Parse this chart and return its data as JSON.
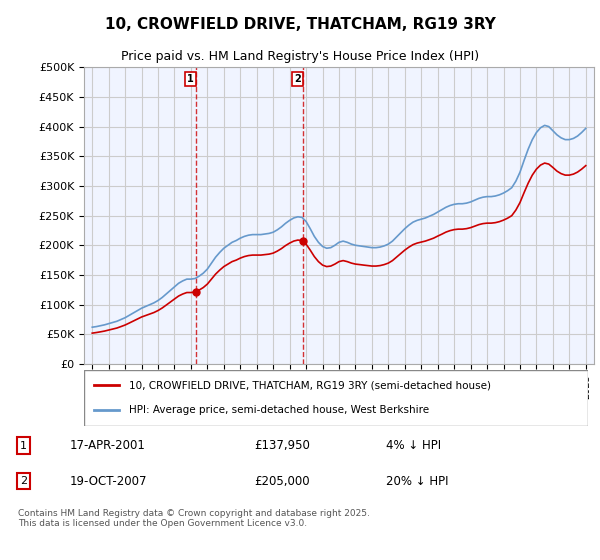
{
  "title": "10, CROWFIELD DRIVE, THATCHAM, RG19 3RY",
  "subtitle": "Price paid vs. HM Land Registry's House Price Index (HPI)",
  "ylabel_ticks": [
    "£0",
    "£50K",
    "£100K",
    "£150K",
    "£200K",
    "£250K",
    "£300K",
    "£350K",
    "£400K",
    "£450K",
    "£500K"
  ],
  "ytick_values": [
    0,
    50000,
    100000,
    150000,
    200000,
    250000,
    300000,
    350000,
    400000,
    450000,
    500000
  ],
  "xlim_years": [
    1994.5,
    2025.5
  ],
  "ylim": [
    0,
    500000
  ],
  "vline1_x": 2001.29,
  "vline2_x": 2007.79,
  "sale1_label": "1",
  "sale2_label": "2",
  "sale1_price": 137950,
  "sale2_price": 205000,
  "sale1_date": "17-APR-2001",
  "sale2_date": "19-OCT-2007",
  "sale1_hpi_diff": "4% ↓ HPI",
  "sale2_hpi_diff": "20% ↓ HPI",
  "legend_line1": "10, CROWFIELD DRIVE, THATCHAM, RG19 3RY (semi-detached house)",
  "legend_line2": "HPI: Average price, semi-detached house, West Berkshire",
  "footer": "Contains HM Land Registry data © Crown copyright and database right 2025.\nThis data is licensed under the Open Government Licence v3.0.",
  "line_color_red": "#cc0000",
  "line_color_blue": "#6699cc",
  "vline_color": "#cc0000",
  "grid_color": "#cccccc",
  "bg_color": "#ffffff",
  "plot_bg_color": "#f0f4ff",
  "sale1_marker_y": 137950,
  "sale2_marker_y": 205000,
  "hpi_data_years": [
    1995,
    1995.25,
    1995.5,
    1995.75,
    1996,
    1996.25,
    1996.5,
    1996.75,
    1997,
    1997.25,
    1997.5,
    1997.75,
    1998,
    1998.25,
    1998.5,
    1998.75,
    1999,
    1999.25,
    1999.5,
    1999.75,
    2000,
    2000.25,
    2000.5,
    2000.75,
    2001,
    2001.25,
    2001.5,
    2001.75,
    2002,
    2002.25,
    2002.5,
    2002.75,
    2003,
    2003.25,
    2003.5,
    2003.75,
    2004,
    2004.25,
    2004.5,
    2004.75,
    2005,
    2005.25,
    2005.5,
    2005.75,
    2006,
    2006.25,
    2006.5,
    2006.75,
    2007,
    2007.25,
    2007.5,
    2007.75,
    2008,
    2008.25,
    2008.5,
    2008.75,
    2009,
    2009.25,
    2009.5,
    2009.75,
    2010,
    2010.25,
    2010.5,
    2010.75,
    2011,
    2011.25,
    2011.5,
    2011.75,
    2012,
    2012.25,
    2012.5,
    2012.75,
    2013,
    2013.25,
    2013.5,
    2013.75,
    2014,
    2014.25,
    2014.5,
    2014.75,
    2015,
    2015.25,
    2015.5,
    2015.75,
    2016,
    2016.25,
    2016.5,
    2016.75,
    2017,
    2017.25,
    2017.5,
    2017.75,
    2018,
    2018.25,
    2018.5,
    2018.75,
    2019,
    2019.25,
    2019.5,
    2019.75,
    2020,
    2020.25,
    2020.5,
    2020.75,
    2021,
    2021.25,
    2021.5,
    2021.75,
    2022,
    2022.25,
    2022.5,
    2022.75,
    2023,
    2023.25,
    2023.5,
    2023.75,
    2024,
    2024.25,
    2024.5,
    2024.75,
    2025
  ],
  "hpi_values": [
    62000,
    63000,
    64500,
    66000,
    68000,
    70000,
    72000,
    75000,
    78000,
    82000,
    86000,
    90000,
    94000,
    97000,
    100000,
    103000,
    107000,
    112000,
    118000,
    124000,
    130000,
    136000,
    140000,
    143000,
    143000,
    144000,
    148000,
    153000,
    160000,
    170000,
    180000,
    188000,
    195000,
    200000,
    205000,
    208000,
    212000,
    215000,
    217000,
    218000,
    218000,
    218000,
    219000,
    220000,
    222000,
    226000,
    231000,
    237000,
    242000,
    246000,
    248000,
    247000,
    240000,
    228000,
    215000,
    205000,
    198000,
    195000,
    196000,
    200000,
    205000,
    207000,
    205000,
    202000,
    200000,
    199000,
    198000,
    197000,
    196000,
    196000,
    197000,
    199000,
    202000,
    207000,
    214000,
    221000,
    228000,
    234000,
    239000,
    242000,
    244000,
    246000,
    249000,
    252000,
    256000,
    260000,
    264000,
    267000,
    269000,
    270000,
    270000,
    271000,
    273000,
    276000,
    279000,
    281000,
    282000,
    282000,
    283000,
    285000,
    288000,
    292000,
    297000,
    308000,
    323000,
    343000,
    362000,
    378000,
    390000,
    398000,
    402000,
    400000,
    393000,
    386000,
    381000,
    378000,
    378000,
    380000,
    384000,
    390000,
    397000
  ],
  "property_data_years": [
    2001.29,
    2007.79
  ],
  "property_values": [
    137950,
    205000
  ],
  "hpi_indexed_years": [
    1995,
    1995.25,
    1995.5,
    1995.75,
    1996,
    1996.25,
    1996.5,
    1996.75,
    1997,
    1997.25,
    1997.5,
    1997.75,
    1998,
    1998.25,
    1998.5,
    1998.75,
    1999,
    1999.25,
    1999.5,
    1999.75,
    2000,
    2000.25,
    2000.5,
    2000.75,
    2001,
    2001.25,
    2001.5,
    2001.75,
    2002,
    2002.25,
    2002.5,
    2002.75,
    2003,
    2003.25,
    2003.5,
    2003.75,
    2004,
    2004.25,
    2004.5,
    2004.75,
    2005,
    2005.25,
    2005.5,
    2005.75,
    2006,
    2006.25,
    2006.5,
    2006.75,
    2007,
    2007.25,
    2007.5,
    2007.75,
    2008,
    2008.25,
    2008.5,
    2008.75,
    2009,
    2009.25,
    2009.5,
    2009.75,
    2010,
    2010.25,
    2010.5,
    2010.75,
    2011,
    2011.25,
    2011.5,
    2011.75,
    2012,
    2012.25,
    2012.5,
    2012.75,
    2013,
    2013.25,
    2013.5,
    2013.75,
    2014,
    2014.25,
    2014.5,
    2014.75,
    2015,
    2015.25,
    2015.5,
    2015.75,
    2016,
    2016.25,
    2016.5,
    2016.75,
    2017,
    2017.25,
    2017.5,
    2017.75,
    2018,
    2018.25,
    2018.5,
    2018.75,
    2019,
    2019.25,
    2019.5,
    2019.75,
    2020,
    2020.25,
    2020.5,
    2020.75,
    2021,
    2021.25,
    2021.5,
    2021.75,
    2022,
    2022.25,
    2022.5,
    2022.75,
    2023,
    2023.25,
    2023.5,
    2023.75,
    2024,
    2024.25,
    2024.5,
    2024.75,
    2025
  ],
  "property_indexed_values": [
    52000,
    53000,
    54200,
    55500,
    57200,
    58900,
    60600,
    63100,
    65700,
    69000,
    72400,
    75800,
    79200,
    81700,
    84200,
    86700,
    90100,
    94300,
    99300,
    104400,
    109500,
    114500,
    117900,
    120400,
    120400,
    121200,
    124600,
    128800,
    134700,
    143100,
    151500,
    158200,
    164100,
    168300,
    172500,
    175000,
    178400,
    181000,
    182700,
    183500,
    183500,
    183500,
    184300,
    185100,
    186800,
    190200,
    194400,
    199500,
    203700,
    207100,
    208800,
    207900,
    201900,
    191900,
    181000,
    172500,
    166600,
    164100,
    165000,
    168300,
    172500,
    174200,
    172500,
    170000,
    168300,
    167500,
    166600,
    165800,
    165000,
    165000,
    165800,
    167500,
    170000,
    174200,
    180100,
    186000,
    191900,
    196900,
    201100,
    203700,
    205400,
    207100,
    209500,
    212000,
    215500,
    218700,
    222200,
    224700,
    226400,
    227200,
    227200,
    228000,
    229700,
    232200,
    234800,
    236500,
    237300,
    237300,
    238100,
    239800,
    242400,
    245700,
    249900,
    259300,
    271900,
    288700,
    304700,
    318200,
    328300,
    335100,
    338500,
    336800,
    331100,
    324900,
    320700,
    318200,
    318200,
    319900,
    323300,
    328300,
    334200
  ]
}
